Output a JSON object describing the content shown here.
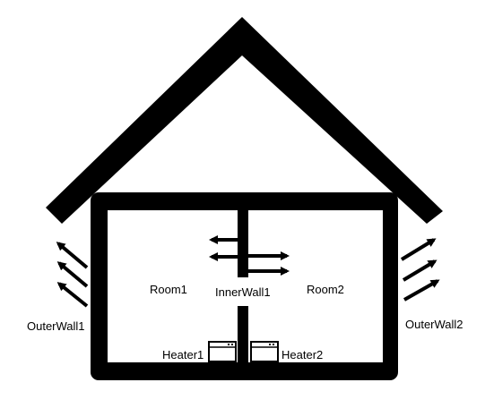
{
  "labels": {
    "room1": "Room1",
    "room2": "Room2",
    "inner_wall": "InnerWall1",
    "outer_wall_left": "OuterWall1",
    "outer_wall_right": "OuterWall2",
    "heater1": "Heater1",
    "heater2": "Heater2"
  },
  "colors": {
    "structure": "#000000",
    "background": "#ffffff"
  },
  "icons": {
    "heat_flow": "arrow-icon",
    "heater": "radiator-icon"
  }
}
